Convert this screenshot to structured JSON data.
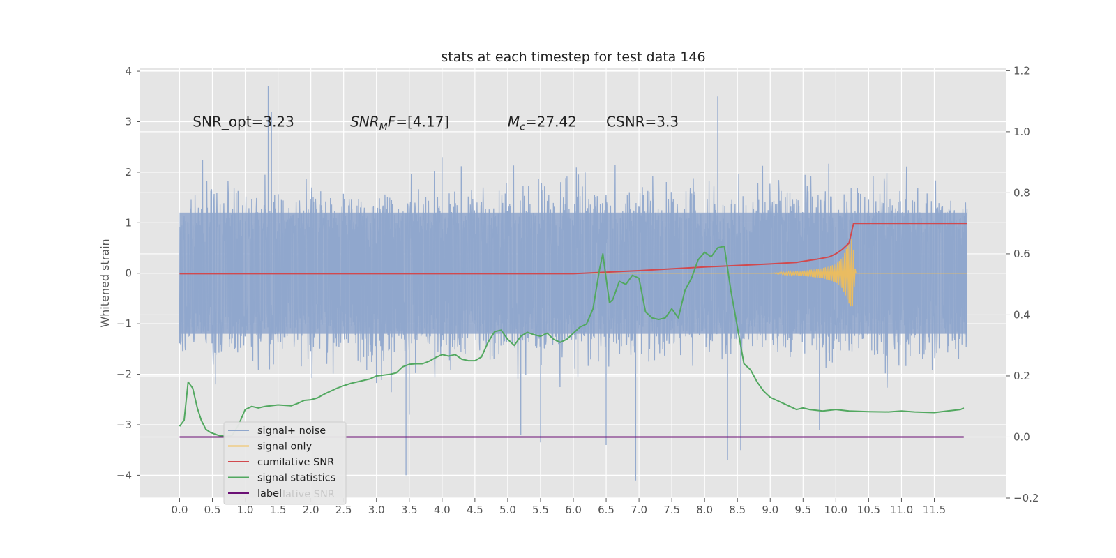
{
  "chart_data": {
    "type": "line",
    "title": "stats at each timestep for test data 146",
    "ylabel": "Whitened strain",
    "xlim": [
      -0.6,
      12.6
    ],
    "ylim_left": [
      -4.45,
      4.07
    ],
    "ylim_right": [
      -0.2,
      1.21
    ],
    "x_ticks": [
      "0.0",
      "0.5",
      "1.0",
      "1.5",
      "2.0",
      "2.5",
      "3.0",
      "3.5",
      "4.0",
      "4.5",
      "5.0",
      "5.5",
      "6.0",
      "6.5",
      "7.0",
      "7.5",
      "8.0",
      "8.5",
      "9.0",
      "9.5",
      "10.0",
      "10.5",
      "11.0",
      "11.5"
    ],
    "y_left_ticks": [
      "4",
      "3",
      "2",
      "1",
      "0",
      "−1",
      "−2",
      "−3",
      "−4"
    ],
    "y_right_ticks": [
      "1.2",
      "1.0",
      "0.8",
      "0.6",
      "0.4",
      "0.2",
      "0.0",
      "−0.2"
    ],
    "grid": true,
    "legend_position": "lower-left",
    "annotations": [
      {
        "id": "snr-opt",
        "text": "SNR_opt=3.23",
        "x": 0.2,
        "y": 2.9
      },
      {
        "id": "snr-mf",
        "base": "SNR",
        "sub": "M",
        "rest": "F=[4.17]",
        "x": 2.6,
        "y": 2.9
      },
      {
        "id": "mc",
        "base": "M",
        "sub": "c",
        "rest": "=27.42",
        "x": 5.0,
        "y": 2.9
      },
      {
        "id": "csnr",
        "text": "CSNR=3.3",
        "x": 6.5,
        "y": 2.9
      }
    ],
    "series": [
      {
        "name": "signal+ noise",
        "axis": "left",
        "color": "#8fa6cc",
        "x_range": [
          0.0,
          12.0
        ],
        "typical_envelope": [
          -1.7,
          1.7
        ],
        "spike_x": [
          0.55,
          1.35,
          1.4,
          3.45,
          3.5,
          4.0,
          5.2,
          5.5,
          6.5,
          6.95,
          8.2,
          8.35,
          8.55,
          9.75
        ],
        "spike_y": [
          -2.2,
          3.7,
          3.2,
          -4.0,
          -2.8,
          2.3,
          -3.2,
          -3.35,
          -3.4,
          -4.1,
          3.5,
          -3.7,
          -3.5,
          -3.1
        ]
      },
      {
        "name": "signal only",
        "axis": "left",
        "color": "#f3bf55",
        "x": [
          0.0,
          9.0,
          9.5,
          9.8,
          10.0,
          10.1,
          10.15,
          10.2,
          10.25,
          10.3,
          12.0
        ],
        "y": [
          0.0,
          0.0,
          0.05,
          0.1,
          0.18,
          0.3,
          0.45,
          0.6,
          0.7,
          0.0,
          0.0
        ],
        "y_lower": [
          0.0,
          0.0,
          -0.05,
          -0.1,
          -0.18,
          -0.3,
          -0.45,
          -0.6,
          -0.7,
          0.0,
          0.0
        ]
      },
      {
        "name": "cumilative SNR",
        "axis": "right",
        "color": "#d1494e",
        "x": [
          0.0,
          2.0,
          4.0,
          6.0,
          7.0,
          8.0,
          8.5,
          9.0,
          9.4,
          9.7,
          9.9,
          10.0,
          10.1,
          10.2,
          10.27,
          12.0
        ],
        "y": [
          0.535,
          0.535,
          0.535,
          0.535,
          0.545,
          0.557,
          0.562,
          0.567,
          0.572,
          0.582,
          0.59,
          0.6,
          0.615,
          0.635,
          0.7,
          0.7
        ]
      },
      {
        "name": "signal statistics",
        "axis": "right",
        "color": "#52a860",
        "x": [
          0.0,
          0.07,
          0.13,
          0.2,
          0.27,
          0.33,
          0.4,
          0.47,
          0.53,
          0.6,
          0.7,
          0.8,
          0.9,
          1.0,
          1.1,
          1.2,
          1.3,
          1.5,
          1.7,
          1.8,
          1.9,
          2.0,
          2.1,
          2.2,
          2.3,
          2.4,
          2.5,
          2.6,
          2.7,
          2.8,
          2.9,
          3.0,
          3.2,
          3.3,
          3.4,
          3.5,
          3.6,
          3.7,
          3.8,
          3.9,
          4.0,
          4.1,
          4.2,
          4.3,
          4.4,
          4.5,
          4.6,
          4.7,
          4.8,
          4.9,
          5.0,
          5.1,
          5.2,
          5.3,
          5.4,
          5.5,
          5.6,
          5.7,
          5.8,
          5.9,
          6.0,
          6.1,
          6.2,
          6.3,
          6.4,
          6.45,
          6.5,
          6.55,
          6.6,
          6.7,
          6.8,
          6.9,
          7.0,
          7.1,
          7.2,
          7.3,
          7.4,
          7.5,
          7.6,
          7.7,
          7.8,
          7.9,
          8.0,
          8.1,
          8.2,
          8.3,
          8.4,
          8.5,
          8.6,
          8.7,
          8.8,
          8.9,
          9.0,
          9.1,
          9.2,
          9.3,
          9.4,
          9.5,
          9.6,
          9.8,
          10.0,
          10.2,
          10.5,
          10.8,
          11.0,
          11.2,
          11.5,
          11.7,
          11.9,
          11.95
        ],
        "y": [
          0.035,
          0.055,
          0.18,
          0.16,
          0.095,
          0.055,
          0.025,
          0.015,
          0.01,
          0.005,
          0.002,
          0.005,
          0.04,
          0.09,
          0.1,
          0.095,
          0.1,
          0.105,
          0.102,
          0.11,
          0.12,
          0.122,
          0.128,
          0.14,
          0.15,
          0.16,
          0.168,
          0.175,
          0.18,
          0.185,
          0.19,
          0.2,
          0.205,
          0.21,
          0.23,
          0.238,
          0.24,
          0.24,
          0.248,
          0.26,
          0.27,
          0.265,
          0.27,
          0.255,
          0.25,
          0.25,
          0.262,
          0.31,
          0.345,
          0.35,
          0.32,
          0.3,
          0.33,
          0.343,
          0.335,
          0.33,
          0.34,
          0.32,
          0.31,
          0.32,
          0.34,
          0.36,
          0.37,
          0.42,
          0.55,
          0.6,
          0.52,
          0.44,
          0.45,
          0.51,
          0.5,
          0.53,
          0.52,
          0.41,
          0.39,
          0.385,
          0.39,
          0.42,
          0.39,
          0.48,
          0.52,
          0.58,
          0.605,
          0.59,
          0.62,
          0.625,
          0.48,
          0.36,
          0.24,
          0.22,
          0.18,
          0.15,
          0.13,
          0.12,
          0.11,
          0.1,
          0.09,
          0.095,
          0.09,
          0.085,
          0.09,
          0.085,
          0.083,
          0.082,
          0.085,
          0.082,
          0.08,
          0.085,
          0.09,
          0.095
        ]
      },
      {
        "name": "label",
        "axis": "right",
        "color": "#6b1075",
        "x": [
          0.0,
          11.95
        ],
        "y": [
          0.0,
          0.0
        ]
      }
    ],
    "legend": [
      "signal+ noise",
      "signal only",
      "cumilative SNR",
      "signal statistics",
      "label"
    ],
    "legend_overlap_text": "lative SNR"
  }
}
